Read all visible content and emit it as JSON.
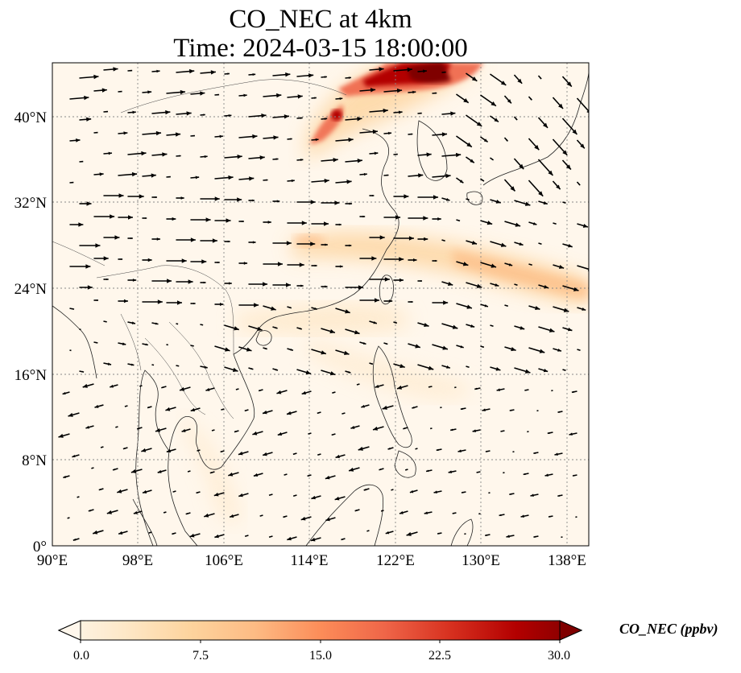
{
  "figure": {
    "title_line1": "CO_NEC at 4km",
    "title_line2": "Time: 2024-03-15 18:00:00"
  },
  "map": {
    "extent": {
      "lon": [
        90,
        140
      ],
      "lat": [
        0,
        45
      ]
    },
    "lon_ticks": [
      "90°E",
      "98°E",
      "106°E",
      "114°E",
      "122°E",
      "130°E",
      "138°E"
    ],
    "lat_ticks": [
      "0°",
      "8°N",
      "16°N",
      "24°N",
      "32°N",
      "40°N"
    ],
    "gridlines": true,
    "overlay": "wind vectors",
    "plume_regions": [
      {
        "name": "Bohai / Northeast China plume",
        "level": "high"
      },
      {
        "name": "East China Sea band",
        "level": "moderate"
      },
      {
        "name": "South China band",
        "level": "low"
      }
    ]
  },
  "colorbar": {
    "label": "CO_NEC (ppbv)",
    "ticks": [
      "0.0",
      "7.5",
      "15.0",
      "22.5",
      "30.0"
    ],
    "range": [
      0,
      30
    ],
    "colormap": "OrRd",
    "colors": [
      "#fff7ec",
      "#fee8c8",
      "#fdd49e",
      "#fdbb84",
      "#fc8d59",
      "#ef6548",
      "#d7301f",
      "#b30000",
      "#7f0000"
    ],
    "extend": "both"
  }
}
